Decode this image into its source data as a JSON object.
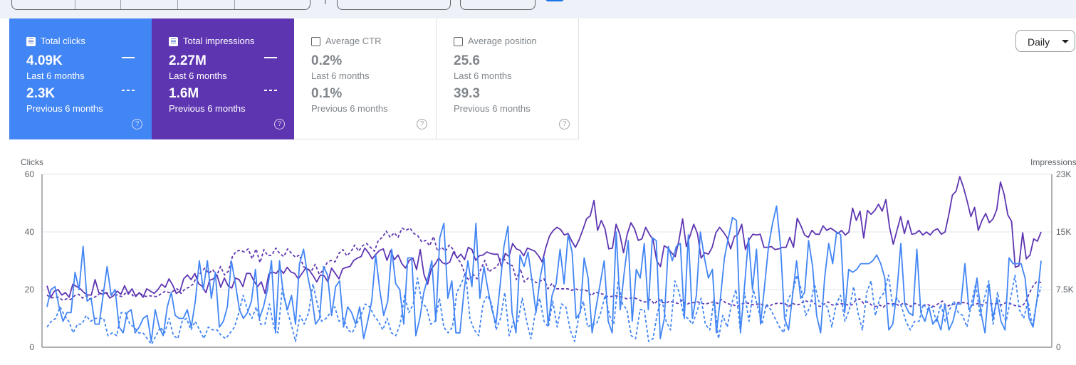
{
  "metric_cards": [
    {
      "label": "Total clicks",
      "current_value": "4.09K",
      "current_period": "Last 6 months",
      "previous_value": "2.3K",
      "previous_period": "Previous 6 months",
      "selected": true,
      "color": "#4285f4"
    },
    {
      "label": "Total impressions",
      "current_value": "2.27M",
      "current_period": "Last 6 months",
      "previous_value": "1.6M",
      "previous_period": "Previous 6 months",
      "selected": true,
      "color": "#5e35b1"
    },
    {
      "label": "Average CTR",
      "current_value": "0.2%",
      "current_period": "Last 6 months",
      "previous_value": "0.1%",
      "previous_period": "Previous 6 months",
      "selected": false
    },
    {
      "label": "Average position",
      "current_value": "25.6",
      "current_period": "Last 6 months",
      "previous_value": "39.3",
      "previous_period": "Previous 6 months",
      "selected": false
    }
  ],
  "help_icon": "?",
  "granularity": {
    "selected": "Daily",
    "icon": "dropdown-caret"
  },
  "chart_data": {
    "type": "line",
    "left_axis": {
      "label": "Clicks",
      "ticks": [
        "0",
        "20",
        "40",
        "60"
      ],
      "ylim": [
        0,
        60
      ]
    },
    "right_axis": {
      "label": "Impressions",
      "ticks": [
        "0",
        "7.5K",
        "15K",
        "23K"
      ],
      "ylim": [
        0,
        22500
      ]
    },
    "grid": true,
    "series": [
      {
        "key": "clicks_current",
        "axis": "left",
        "style": "solid",
        "color": "#4285f4",
        "values": [
          14,
          20,
          21,
          14,
          9,
          12,
          12,
          26,
          20,
          35,
          16,
          17,
          8,
          8,
          18,
          28,
          18,
          20,
          7,
          5,
          12,
          13,
          5,
          7,
          10,
          11,
          2,
          13,
          7,
          4,
          14,
          19,
          11,
          10,
          10,
          13,
          7,
          16,
          30,
          20,
          30,
          17,
          26,
          7,
          9,
          14,
          30,
          22,
          13,
          10,
          12,
          16,
          27,
          10,
          14,
          20,
          30,
          5,
          30,
          18,
          13,
          18,
          8,
          29,
          34,
          25,
          18,
          8,
          10,
          28,
          25,
          11,
          21,
          23,
          7,
          14,
          12,
          8,
          14,
          3,
          9,
          16,
          32,
          20,
          11,
          16,
          34,
          22,
          20,
          8,
          31,
          31,
          4,
          10,
          19,
          24,
          30,
          9,
          38,
          43,
          17,
          23,
          5,
          5,
          19,
          30,
          21,
          43,
          17,
          28,
          20,
          13,
          8,
          21,
          35,
          42,
          12,
          5,
          32,
          28,
          33,
          23,
          12,
          24,
          31,
          8,
          18,
          22,
          34,
          22,
          39,
          33,
          10,
          12,
          31,
          24,
          5,
          14,
          22,
          30,
          9,
          5,
          40,
          13,
          26,
          37,
          9,
          27,
          24,
          36,
          13,
          38,
          37,
          3,
          10,
          35,
          30,
          35,
          36,
          10,
          39,
          10,
          18,
          40,
          31,
          24,
          27,
          5,
          17,
          31,
          38,
          45,
          44,
          5,
          21,
          38,
          20,
          34,
          8,
          21,
          35,
          43,
          49,
          35,
          10,
          6,
          18,
          30,
          17,
          19,
          37,
          28,
          11,
          5,
          24,
          36,
          29,
          40,
          39,
          12,
          27,
          26,
          27,
          29,
          29,
          29,
          30,
          32,
          29,
          24,
          6,
          8,
          19,
          36,
          15,
          12,
          11,
          34,
          12,
          9,
          14,
          8,
          10,
          6,
          15,
          6,
          9,
          15,
          15,
          29,
          13,
          15,
          24,
          12,
          5,
          22,
          10,
          17,
          9,
          6,
          31,
          29,
          29,
          29,
          24,
          10,
          7,
          17,
          30
        ]
      },
      {
        "key": "clicks_previous",
        "axis": "left",
        "style": "dashed",
        "color": "#4285f4",
        "values": [
          7,
          9,
          10,
          14,
          11,
          9,
          5,
          8,
          8,
          11,
          9,
          10,
          10,
          10,
          4,
          5,
          4,
          12,
          12,
          8,
          7,
          5,
          5,
          3,
          1,
          4,
          7,
          5,
          10,
          4,
          3,
          9,
          10,
          6,
          9,
          6,
          3,
          7,
          6,
          6,
          4,
          3,
          5,
          7,
          12,
          18,
          13,
          10,
          14,
          8,
          8,
          15,
          7,
          5,
          21,
          13,
          8,
          2,
          11,
          8,
          12,
          22,
          15,
          9,
          10,
          12,
          14,
          9,
          10,
          6,
          5,
          8,
          11,
          15,
          14,
          11,
          9,
          6,
          10,
          5,
          4,
          8,
          18,
          12,
          15,
          24,
          15,
          14,
          8,
          9,
          17,
          7,
          5,
          7,
          19,
          22,
          26,
          10,
          6,
          4,
          15,
          18,
          15,
          6,
          10,
          19,
          4,
          9,
          9,
          17,
          9,
          3,
          12,
          17,
          9,
          7,
          16,
          7,
          15,
          14,
          6,
          2,
          11,
          16,
          7,
          8,
          8,
          12,
          18,
          11,
          8,
          23,
          15,
          13,
          4,
          3,
          13,
          13,
          2,
          3,
          12,
          17,
          9,
          6,
          23,
          19,
          11,
          10,
          8,
          12,
          17,
          8,
          6,
          17,
          3,
          11,
          7,
          15,
          20,
          6,
          19,
          9,
          20,
          14,
          8,
          15,
          13,
          10,
          7,
          5,
          17,
          19,
          25,
          20,
          11,
          14,
          22,
          16,
          15,
          14,
          7,
          15,
          18,
          9,
          13,
          21,
          12,
          6,
          19,
          23,
          11,
          17,
          19,
          25,
          14,
          17,
          14,
          9,
          6,
          9,
          9,
          15,
          13,
          14,
          9,
          15,
          9,
          13,
          16,
          12,
          11,
          7,
          15,
          22,
          11,
          17,
          23,
          8,
          19,
          12,
          9,
          17,
          25,
          13,
          10,
          16,
          7,
          16,
          21
        ]
      },
      {
        "key": "impressions_current",
        "axis": "right",
        "style": "solid",
        "color": "#5e35b1",
        "values": [
          8000,
          6500,
          7300,
          7500,
          6800,
          7100,
          6500,
          8200,
          7900,
          7600,
          7100,
          6800,
          6800,
          8800,
          7100,
          6900,
          7100,
          6400,
          6700,
          7300,
          6900,
          8000,
          6900,
          7600,
          6600,
          7100,
          6500,
          7600,
          7300,
          7000,
          7500,
          8200,
          7800,
          8900,
          8100,
          7000,
          7300,
          8900,
          9400,
          8800,
          9600,
          8300,
          7900,
          7100,
          8700,
          8900,
          9400,
          7800,
          9000,
          8000,
          7700,
          9000,
          8800,
          7900,
          9600,
          9600,
          8600,
          7900,
          8500,
          7000,
          9500,
          9800,
          9600,
          10200,
          9600,
          10400,
          9800,
          9600,
          8900,
          9600,
          10300,
          10000,
          9300,
          8500,
          9400,
          9300,
          8500,
          10300,
          9600,
          8900,
          10200,
          10400,
          10500,
          11300,
          11600,
          11800,
          12900,
          12300,
          11500,
          12100,
          12600,
          12800,
          11300,
          12600,
          11400,
          12000,
          10900,
          10300,
          11300,
          11600,
          10100,
          12700,
          9500,
          8200,
          10200,
          10800,
          11600,
          11000,
          10800,
          11100,
          12400,
          11600,
          12100,
          11400,
          13000,
          12700,
          11300,
          11900,
          12000,
          12400,
          12200,
          12100,
          12100,
          10500,
          12200,
          11800,
          13500,
          12800,
          12600,
          11900,
          12900,
          12700,
          12500,
          11900,
          11100,
          13000,
          14500,
          15200,
          15600,
          15300,
          14600,
          14800,
          13800,
          13000,
          14000,
          15300,
          16700,
          17100,
          19100,
          15200,
          16500,
          15400,
          12800,
          12900,
          16000,
          14700,
          12300,
          14700,
          16200,
          15400,
          13900,
          14100,
          15600,
          14700,
          14000,
          11200,
          10500,
          13200,
          12900,
          12300,
          11800,
          13900,
          16700,
          13100,
          14500,
          16000,
          14800,
          11600,
          12300,
          12100,
          13000,
          14900,
          15600,
          15000,
          14300,
          12800,
          14400,
          14700,
          16000,
          12700,
          14000,
          14700,
          14600,
          14700,
          13000,
          13000,
          13100,
          12700,
          12800,
          13000,
          13000,
          14300,
          13000,
          16800,
          15800,
          14600,
          14300,
          15200,
          14700,
          14700,
          15800,
          15200,
          15500,
          15200,
          14800,
          15200,
          14600,
          15000,
          18100,
          16500,
          17700,
          14200,
          17800,
          17300,
          17800,
          18600,
          17700,
          19200,
          15600,
          13400,
          15200,
          17000,
          14800,
          16500,
          14700,
          14800,
          15200,
          14600,
          15000,
          14600,
          15200,
          15400,
          14700,
          15000,
          17200,
          19800,
          20300,
          22200,
          20800,
          19000,
          17000,
          18200,
          15200,
          16500,
          17400,
          16200,
          16700,
          17900,
          21500,
          19900,
          17200,
          16400,
          10400,
          10600,
          14900,
          11500,
          12000,
          14100,
          13800,
          15000
        ]
      },
      {
        "key": "impressions_previous",
        "axis": "right",
        "style": "dashed",
        "color": "#5e35b1",
        "values": [
          6800,
          6400,
          6500,
          6500,
          6100,
          6300,
          6200,
          6700,
          6900,
          6400,
          6700,
          6300,
          6500,
          6800,
          7400,
          7100,
          6900,
          7000,
          6700,
          6600,
          7100,
          7200,
          6600,
          6900,
          6900,
          6600,
          6700,
          6600,
          6600,
          7000,
          7300,
          7100,
          7300,
          7600,
          7000,
          7600,
          7800,
          8200,
          9200,
          9700,
          10300,
          9600,
          10100,
          9300,
          10500,
          9400,
          9900,
          11800,
          12500,
          12600,
          12400,
          12800,
          11500,
          12800,
          11000,
          12700,
          11900,
          12000,
          12900,
          12200,
          11800,
          12800,
          12200,
          11700,
          12000,
          10500,
          10200,
          9900,
          10800,
          9500,
          10000,
          11000,
          11300,
          11100,
          12200,
          12700,
          11900,
          12400,
          13300,
          12500,
          13200,
          13500,
          13000,
          12500,
          13900,
          14300,
          15100,
          14300,
          14900,
          14300,
          15500,
          15200,
          15500,
          14800,
          14500,
          13700,
          13900,
          13200,
          14400,
          12500,
          13000,
          12500,
          13300,
          12700,
          11600,
          10900,
          9400,
          8700,
          9500,
          8900,
          10200,
          11300,
          9800,
          10200,
          10400,
          11500,
          11400,
          10800,
          10600,
          8800,
          10200,
          8500,
          9000,
          8800,
          8400,
          8600,
          8900,
          7600,
          8300,
          7600,
          7600,
          7600,
          7600,
          7400,
          7600,
          7400,
          7500,
          7300,
          6700,
          7200,
          7000,
          6900,
          6600,
          6600,
          6700,
          6600,
          6500,
          6300,
          6400,
          6400,
          6200,
          5900,
          5900,
          6200,
          5600,
          6300,
          5800,
          5800,
          6000,
          5800,
          5700,
          6100,
          5500,
          5800,
          5800,
          5900,
          5700,
          5600,
          5800,
          5900,
          5700,
          6200,
          5800,
          5600,
          5500,
          5300,
          5600,
          5800,
          5700,
          5500,
          5600,
          5600,
          5400,
          5300,
          5600,
          5700,
          5700,
          5700,
          5300,
          5700,
          5500,
          5600,
          6100,
          5900,
          6000,
          5500,
          5300,
          5600,
          5900,
          5500,
          5500,
          5700,
          5600,
          5500,
          5500,
          6100,
          6300,
          5700,
          5900,
          5500,
          5300,
          5500,
          5200,
          5700,
          5600,
          5700,
          5400,
          5700,
          5600,
          5300,
          5700,
          5500,
          5400,
          5600,
          5400,
          5300,
          5700,
          6000,
          5300,
          5500,
          5600,
          5800,
          5800,
          5800,
          5500,
          5500,
          5700,
          5500,
          5800,
          5700,
          5600,
          5700,
          5500,
          5800,
          5700,
          5500,
          5300,
          5300,
          5800,
          7000,
          8000,
          8600,
          8400
        ]
      }
    ]
  }
}
